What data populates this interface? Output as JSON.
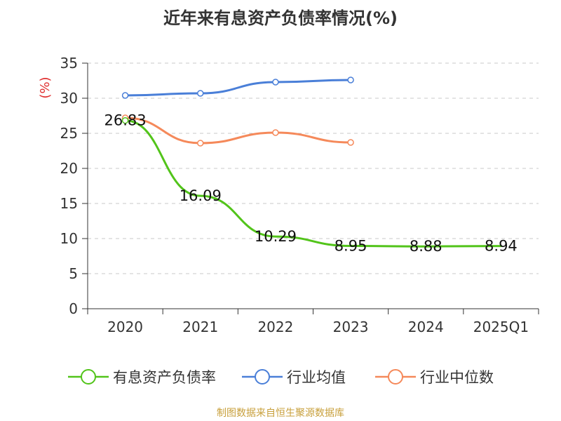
{
  "chart_data": {
    "type": "line",
    "title": "近年来有息资产负债率情况(%)",
    "ylabel": "(%)",
    "xlabel": "",
    "categories": [
      "2020",
      "2021",
      "2022",
      "2023",
      "2024",
      "2025Q1"
    ],
    "ylim": [
      0,
      35
    ],
    "yticks": [
      "0",
      "5",
      "10",
      "15",
      "20",
      "25",
      "30",
      "35"
    ],
    "grid": true,
    "legend_position": "bottom",
    "series": [
      {
        "name": "有息资产负债率",
        "color": "#52c41a",
        "values": [
          26.83,
          16.09,
          10.29,
          8.95,
          8.88,
          8.94
        ],
        "labels": [
          "26.83",
          "16.09",
          "10.29",
          "8.95",
          "8.88",
          "8.94"
        ],
        "show_markers": [
          true,
          false,
          false,
          false,
          false,
          false
        ]
      },
      {
        "name": "行业均值",
        "color": "#4a7fd8",
        "values": [
          30.4,
          30.7,
          32.3,
          32.6,
          null,
          null
        ],
        "show_markers": [
          true,
          true,
          true,
          true,
          false,
          false
        ]
      },
      {
        "name": "行业中位数",
        "color": "#f5895a",
        "values": [
          27.2,
          23.6,
          25.1,
          23.7,
          null,
          null
        ],
        "show_markers": [
          true,
          true,
          true,
          true,
          false,
          false
        ]
      }
    ],
    "source": "制图数据来自恒生聚源数据库",
    "source_color": "#c8a03c",
    "ylabel_color": "#e03030"
  }
}
